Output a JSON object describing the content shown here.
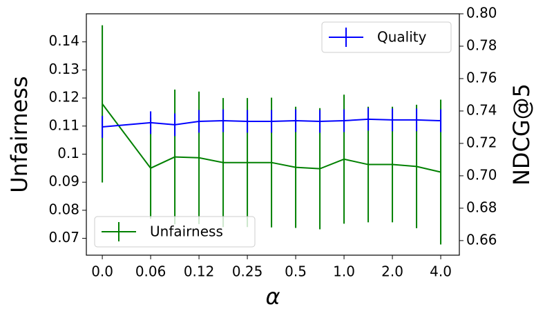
{
  "chart_data": {
    "type": "line",
    "xlabel": "α",
    "ylabel": "Unfairness",
    "y2label": "NDCG@5",
    "x": [
      0,
      2,
      3,
      4,
      5,
      6,
      7,
      8,
      9,
      10,
      11,
      12,
      13,
      14
    ],
    "xlim": [
      -0.66,
      14.77
    ],
    "xticks": [
      {
        "value": 0,
        "label": "0.0"
      },
      {
        "value": 2,
        "label": "0.06"
      },
      {
        "value": 4,
        "label": "0.12"
      },
      {
        "value": 6,
        "label": "0.25"
      },
      {
        "value": 8,
        "label": "0.5"
      },
      {
        "value": 10,
        "label": "1.0"
      },
      {
        "value": 12,
        "label": "2.0"
      },
      {
        "value": 14,
        "label": "4.0"
      }
    ],
    "ylim": [
      0.064,
      0.15
    ],
    "yticks": [
      0.07,
      0.08,
      0.09,
      0.1,
      0.11,
      0.12,
      0.13,
      0.14
    ],
    "y2lim": [
      0.651,
      0.8
    ],
    "y2ticks": [
      {
        "value": 0.66,
        "label": "0.66"
      },
      {
        "value": 0.68,
        "label": "0.68"
      },
      {
        "value": 0.7,
        "label": "0.70"
      },
      {
        "value": 0.72,
        "label": "0.72"
      },
      {
        "value": 0.74,
        "label": "0.74"
      },
      {
        "value": 0.76,
        "label": "0.76"
      },
      {
        "value": 0.78,
        "label": "0.78"
      },
      {
        "value": 0.8,
        "label": "0.80"
      }
    ],
    "series": [
      {
        "name": "Unfairness",
        "color": "#008000",
        "axis": "y",
        "legend": "lower left",
        "values": [
          0.1179,
          0.095,
          0.099,
          0.0987,
          0.097,
          0.097,
          0.097,
          0.0953,
          0.0948,
          0.0982,
          0.0963,
          0.0963,
          0.0956,
          0.0936
        ],
        "errors": [
          0.028,
          0.018,
          0.024,
          0.0236,
          0.023,
          0.023,
          0.0231,
          0.0216,
          0.0216,
          0.023,
          0.0206,
          0.0206,
          0.022,
          0.0258
        ]
      },
      {
        "name": "Quality",
        "color": "#0000ff",
        "axis": "y2",
        "legend": "upper right",
        "values": [
          0.7302,
          0.7328,
          0.7315,
          0.7336,
          0.734,
          0.7336,
          0.7336,
          0.734,
          0.7336,
          0.734,
          0.7349,
          0.7345,
          0.7345,
          0.734
        ],
        "errors": [
          0.0068,
          0.007,
          0.007,
          0.007,
          0.007,
          0.007,
          0.007,
          0.007,
          0.007,
          0.007,
          0.007,
          0.007,
          0.007,
          0.007
        ]
      }
    ]
  }
}
